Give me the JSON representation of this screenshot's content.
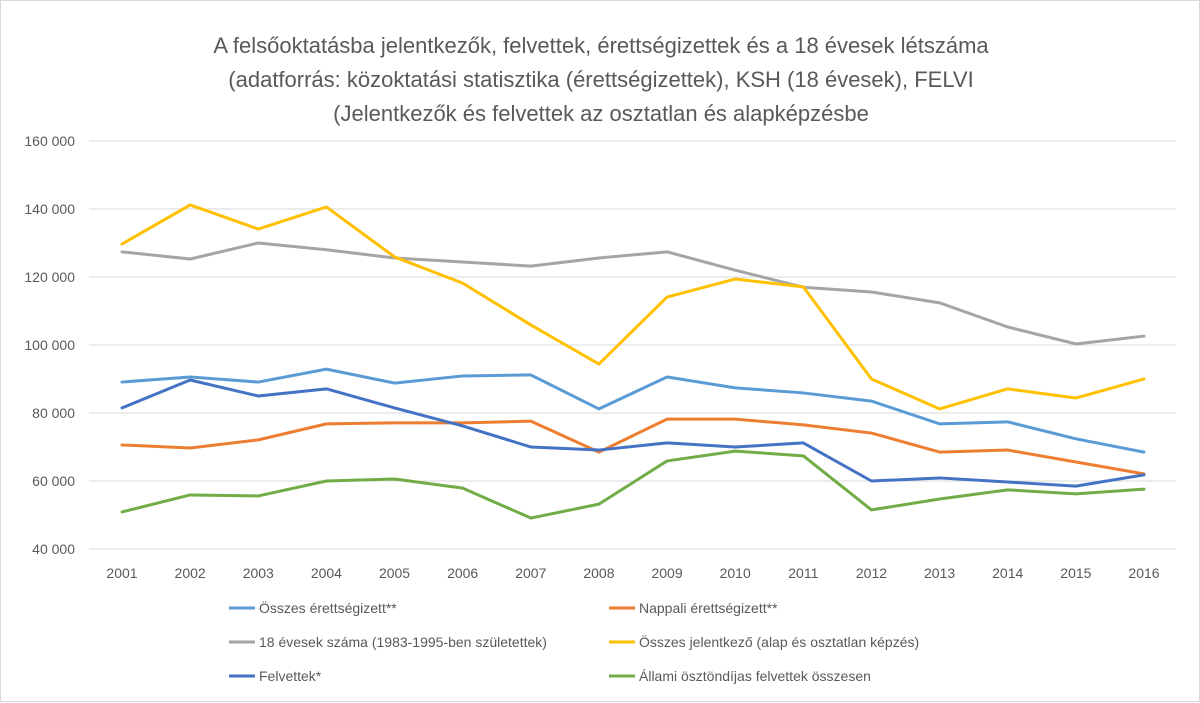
{
  "chart_data": {
    "type": "line",
    "title": [
      "A felsőoktatásba jelentkezők, felvettek, érettségizettek és a 18 évesek létszáma",
      "(adatforrás: közoktatási statisztika (érettségizettek), KSH (18 évesek), FELVI",
      "(Jelentkezők és felvettek az osztatlan és alapképzésbe"
    ],
    "xlabel": "",
    "ylabel": "",
    "ylim": [
      40000,
      160000
    ],
    "yticks": [
      40000,
      60000,
      80000,
      100000,
      120000,
      140000,
      160000
    ],
    "ytick_labels": [
      "40 000",
      "60 000",
      "80 000",
      "100 000",
      "120 000",
      "140 000",
      "160 000"
    ],
    "grid": true,
    "legend_position": "bottom",
    "categories": [
      "2001",
      "2002",
      "2003",
      "2004",
      "2005",
      "2006",
      "2007",
      "2008",
      "2009",
      "2010",
      "2011",
      "2012",
      "2013",
      "2014",
      "2015",
      "2016"
    ],
    "series": [
      {
        "name": "Összes érettségizett**",
        "color": "#5b9bd5",
        "values": [
          89100,
          90600,
          89100,
          92900,
          88800,
          90900,
          91200,
          81200,
          90600,
          87400,
          85900,
          83500,
          76800,
          77400,
          72400,
          68500
        ]
      },
      {
        "name": "Nappali érettségizett**",
        "color": "#ed7d31",
        "values": [
          70600,
          69700,
          72100,
          76800,
          77100,
          77100,
          77600,
          68500,
          78200,
          78200,
          76500,
          74100,
          68500,
          69100,
          65600,
          62100
        ]
      },
      {
        "name": "18 évesek száma (1983-1995-ben születettek)",
        "color": "#a5a5a5",
        "values": [
          127400,
          125300,
          130000,
          128000,
          125600,
          124400,
          123200,
          125600,
          127400,
          122000,
          117000,
          115600,
          112400,
          105300,
          100300,
          102600
        ]
      },
      {
        "name": "Összes jelentkező (alap és osztatlan képzés)",
        "color": "#ffc000",
        "values": [
          129700,
          141200,
          134100,
          140600,
          125900,
          118200,
          105900,
          94400,
          114100,
          119400,
          117100,
          90000,
          81200,
          87100,
          84400,
          90000
        ]
      },
      {
        "name": "Felvettek*",
        "color": "#4472c4",
        "values": [
          81500,
          89700,
          85000,
          87100,
          81500,
          76200,
          70000,
          69100,
          71200,
          70000,
          71200,
          60000,
          60900,
          59700,
          58500,
          61800
        ]
      },
      {
        "name": "Állami ösztöndíjas felvettek összesen",
        "color": "#70ad47",
        "values": [
          50900,
          55900,
          55600,
          60000,
          60600,
          57900,
          49100,
          53200,
          65900,
          68800,
          67400,
          51500,
          54700,
          57400,
          56200,
          57600
        ]
      }
    ]
  }
}
